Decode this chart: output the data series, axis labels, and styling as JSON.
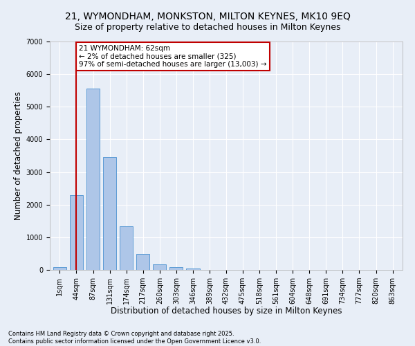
{
  "title1": "21, WYMONDHAM, MONKSTON, MILTON KEYNES, MK10 9EQ",
  "title2": "Size of property relative to detached houses in Milton Keynes",
  "xlabel": "Distribution of detached houses by size in Milton Keynes",
  "ylabel": "Number of detached properties",
  "bar_labels": [
    "1sqm",
    "44sqm",
    "87sqm",
    "131sqm",
    "174sqm",
    "217sqm",
    "260sqm",
    "303sqm",
    "346sqm",
    "389sqm",
    "432sqm",
    "475sqm",
    "518sqm",
    "561sqm",
    "604sqm",
    "648sqm",
    "691sqm",
    "734sqm",
    "777sqm",
    "820sqm",
    "863sqm"
  ],
  "bar_values": [
    75,
    2300,
    5550,
    3450,
    1330,
    480,
    170,
    90,
    50,
    0,
    0,
    0,
    0,
    0,
    0,
    0,
    0,
    0,
    0,
    0,
    0
  ],
  "bar_color": "#aec6e8",
  "bar_edgecolor": "#5b9bd5",
  "bar_width": 0.8,
  "ylim": [
    0,
    7000
  ],
  "yticks": [
    0,
    1000,
    2000,
    3000,
    4000,
    5000,
    6000,
    7000
  ],
  "vline_x": 1,
  "vline_color": "#c00000",
  "annotation_text": "21 WYMONDHAM: 62sqm\n← 2% of detached houses are smaller (325)\n97% of semi-detached houses are larger (13,003) →",
  "annotation_box_color": "#c00000",
  "bg_color": "#e8eef7",
  "grid_color": "#ffffff",
  "footer": "Contains HM Land Registry data © Crown copyright and database right 2025.\nContains public sector information licensed under the Open Government Licence v3.0.",
  "title1_fontsize": 10,
  "title2_fontsize": 9,
  "xlabel_fontsize": 8.5,
  "ylabel_fontsize": 8.5,
  "ann_fontsize": 7.5,
  "footer_fontsize": 6,
  "tick_fontsize": 7
}
